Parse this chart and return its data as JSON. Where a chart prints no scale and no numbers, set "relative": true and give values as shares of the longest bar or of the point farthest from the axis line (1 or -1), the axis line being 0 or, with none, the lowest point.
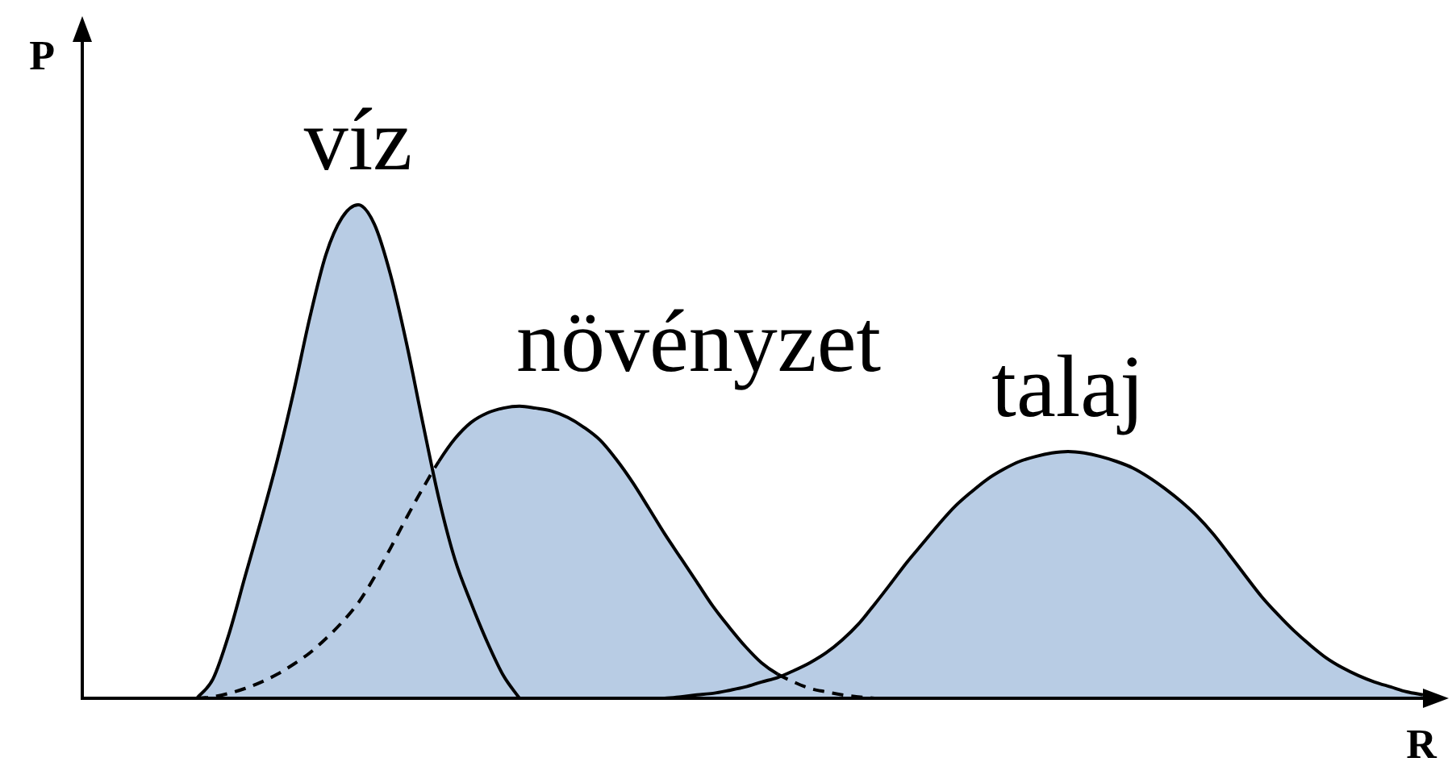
{
  "chart_data": {
    "type": "area",
    "relative": true,
    "xlabel": "R",
    "ylabel": "P",
    "categories": [
      null,
      null,
      null,
      null,
      null,
      null,
      null,
      null,
      null,
      null,
      null,
      null,
      null,
      null,
      null,
      null,
      null,
      null,
      null,
      null,
      null,
      null,
      null,
      null,
      null,
      null,
      null,
      null,
      null,
      null,
      null,
      null,
      null,
      null,
      null,
      null,
      null,
      null,
      null,
      null,
      null,
      null,
      null,
      null,
      null,
      null,
      null,
      null,
      null,
      null,
      null,
      null,
      null,
      null,
      null,
      null,
      null,
      null,
      null,
      null,
      null,
      null,
      null,
      null,
      null,
      null,
      null,
      null,
      null,
      null,
      null,
      null,
      null,
      null,
      null,
      null,
      null,
      null,
      null,
      null,
      null,
      null,
      null,
      null
    ],
    "series": [
      {
        "name": "növényzet",
        "color": "#b8cce4",
        "values": [
          null,
          null,
          null,
          null,
          null,
          null,
          null,
          0,
          0.003,
          0.01,
          0.02,
          0.033,
          0.049,
          0.069,
          0.092,
          0.121,
          0.154,
          0.193,
          0.245,
          0.304,
          0.366,
          0.425,
          0.48,
          0.526,
          0.559,
          0.578,
          0.588,
          0.592,
          0.588,
          0.582,
          0.569,
          0.549,
          0.523,
          0.484,
          0.438,
          0.386,
          0.333,
          0.284,
          0.235,
          0.186,
          0.144,
          0.105,
          0.072,
          0.049,
          0.033,
          0.02,
          0.013,
          0.007,
          0.003,
          0,
          null,
          null,
          null,
          null,
          null,
          null,
          null,
          null,
          null,
          null,
          null,
          null,
          null,
          null,
          null,
          null,
          null,
          null,
          null,
          null,
          null,
          null,
          null,
          null,
          null,
          null,
          null,
          null,
          null,
          null,
          null,
          null,
          null,
          null
        ]
      },
      {
        "name": "víz",
        "color": "#b8cce4",
        "values": [
          null,
          null,
          null,
          null,
          null,
          null,
          null,
          0,
          0.039,
          0.131,
          0.248,
          0.363,
          0.484,
          0.621,
          0.771,
          0.899,
          0.974,
          1,
          0.961,
          0.859,
          0.719,
          0.559,
          0.405,
          0.281,
          0.193,
          0.114,
          0.046,
          0,
          null,
          null,
          null,
          null,
          null,
          null,
          null,
          null,
          null,
          null,
          null,
          null,
          null,
          null,
          null,
          null,
          null,
          null,
          null,
          null,
          null,
          null,
          null,
          null,
          null,
          null,
          null,
          null,
          null,
          null,
          null,
          null,
          null,
          null,
          null,
          null,
          null,
          null,
          null,
          null,
          null,
          null,
          null,
          null,
          null,
          null,
          null,
          null,
          null,
          null,
          null,
          null,
          null,
          null,
          null,
          null
        ]
      },
      {
        "name": "talaj",
        "color": "#b8cce4",
        "values": [
          null,
          null,
          null,
          null,
          null,
          null,
          null,
          null,
          null,
          null,
          null,
          null,
          null,
          null,
          null,
          null,
          null,
          null,
          null,
          null,
          null,
          null,
          null,
          null,
          null,
          null,
          null,
          null,
          null,
          null,
          null,
          null,
          null,
          null,
          null,
          null,
          0,
          0.003,
          0.007,
          0.01,
          0.016,
          0.023,
          0.033,
          0.042,
          0.056,
          0.072,
          0.092,
          0.118,
          0.15,
          0.19,
          0.232,
          0.275,
          0.314,
          0.353,
          0.389,
          0.418,
          0.444,
          0.464,
          0.48,
          0.49,
          0.497,
          0.5,
          0.497,
          0.49,
          0.48,
          0.467,
          0.448,
          0.425,
          0.399,
          0.369,
          0.333,
          0.291,
          0.248,
          0.206,
          0.17,
          0.137,
          0.108,
          0.082,
          0.062,
          0.046,
          0.033,
          0.023,
          0.013,
          0.007
        ]
      }
    ]
  }
}
